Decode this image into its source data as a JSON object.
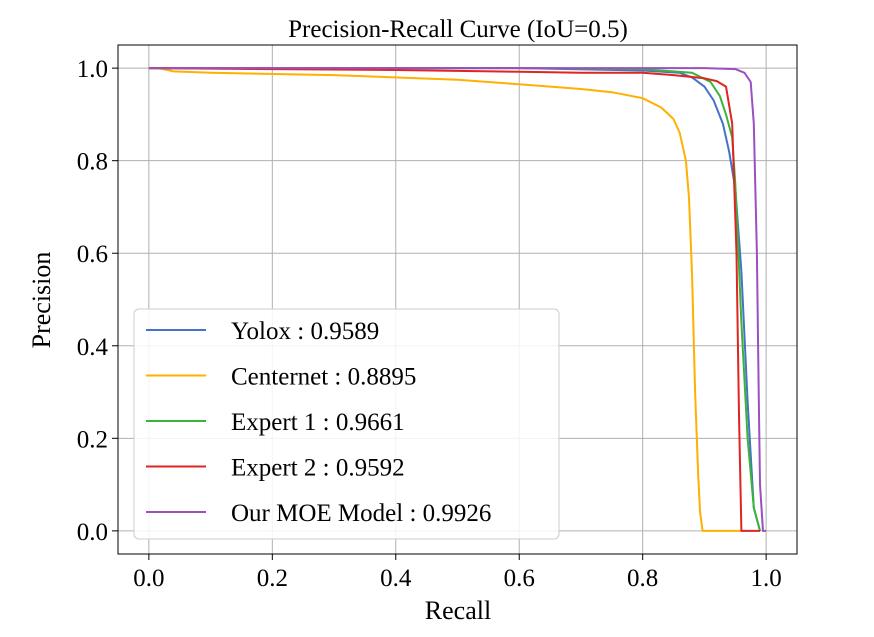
{
  "chart_data": {
    "type": "line",
    "title": "Precision-Recall Curve (IoU=0.5)",
    "xlabel": "Recall",
    "ylabel": "Precision",
    "xlim": [
      -0.05,
      1.05
    ],
    "ylim": [
      -0.05,
      1.05
    ],
    "xticks": [
      "0.0",
      "0.2",
      "0.4",
      "0.6",
      "0.8",
      "1.0"
    ],
    "yticks": [
      "0.0",
      "0.2",
      "0.4",
      "0.6",
      "0.8",
      "1.0"
    ],
    "grid": true,
    "legend_position": "lower-left",
    "series": [
      {
        "name": "Yolox : 0.9589",
        "color": "#4472c4",
        "x": [
          0.0,
          0.2,
          0.4,
          0.6,
          0.8,
          0.86,
          0.88,
          0.9,
          0.915,
          0.93,
          0.94,
          0.95,
          0.96,
          0.97,
          0.98,
          0.99
        ],
        "y": [
          1.0,
          1.0,
          1.0,
          1.0,
          0.995,
          0.99,
          0.98,
          0.96,
          0.93,
          0.88,
          0.82,
          0.74,
          0.56,
          0.28,
          0.05,
          0.0
        ]
      },
      {
        "name": "Centernet : 0.8895",
        "color": "#ffb000",
        "x": [
          0.0,
          0.02,
          0.04,
          0.1,
          0.3,
          0.5,
          0.6,
          0.7,
          0.75,
          0.8,
          0.83,
          0.85,
          0.86,
          0.87,
          0.875,
          0.88,
          0.885,
          0.89,
          0.893,
          0.897,
          0.9,
          0.93,
          0.96
        ],
        "y": [
          1.0,
          0.999,
          0.993,
          0.99,
          0.985,
          0.975,
          0.965,
          0.955,
          0.948,
          0.935,
          0.915,
          0.89,
          0.86,
          0.8,
          0.72,
          0.55,
          0.3,
          0.12,
          0.04,
          0.0,
          0.0,
          0.0,
          0.0
        ]
      },
      {
        "name": "Expert 1 : 0.9661",
        "color": "#3bb33b",
        "x": [
          0.0,
          0.2,
          0.4,
          0.6,
          0.8,
          0.88,
          0.91,
          0.925,
          0.935,
          0.945,
          0.95,
          0.955,
          0.96,
          0.97,
          0.98,
          0.99
        ],
        "y": [
          1.0,
          1.0,
          1.0,
          1.0,
          0.998,
          0.99,
          0.97,
          0.94,
          0.9,
          0.85,
          0.75,
          0.6,
          0.45,
          0.2,
          0.05,
          0.0
        ]
      },
      {
        "name": "Expert 2 : 0.9592",
        "color": "#e02424",
        "x": [
          0.0,
          0.2,
          0.4,
          0.6,
          0.7,
          0.8,
          0.85,
          0.9,
          0.92,
          0.935,
          0.945,
          0.952,
          0.956,
          0.96,
          0.965,
          0.98,
          0.99
        ],
        "y": [
          1.0,
          0.998,
          0.996,
          0.992,
          0.99,
          0.99,
          0.985,
          0.978,
          0.972,
          0.96,
          0.88,
          0.6,
          0.25,
          0.0,
          0.0,
          0.0,
          0.0
        ]
      },
      {
        "name": "Our MOE Model : 0.9926",
        "color": "#9b4fc0",
        "x": [
          0.0,
          0.2,
          0.4,
          0.6,
          0.8,
          0.9,
          0.95,
          0.965,
          0.975,
          0.98,
          0.985,
          0.988,
          0.99,
          0.995,
          1.0
        ],
        "y": [
          1.0,
          1.0,
          1.0,
          1.0,
          1.0,
          1.0,
          0.998,
          0.99,
          0.97,
          0.88,
          0.6,
          0.3,
          0.1,
          0.0,
          0.0
        ]
      }
    ]
  }
}
